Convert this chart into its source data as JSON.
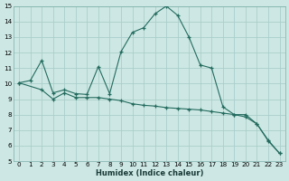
{
  "xlabel": "Humidex (Indice chaleur)",
  "bg_color": "#cde8e4",
  "grid_color": "#aaceca",
  "line_color": "#236b5e",
  "x_upper": [
    0,
    1,
    2,
    3,
    4,
    5,
    6,
    7,
    8,
    9,
    10,
    11,
    12,
    13,
    14,
    15,
    16,
    17,
    18,
    19,
    20,
    21,
    22,
    23
  ],
  "y_upper": [
    10.05,
    10.2,
    11.5,
    9.4,
    9.6,
    9.35,
    9.3,
    11.1,
    9.35,
    12.05,
    13.3,
    13.6,
    14.5,
    15.0,
    14.4,
    13.0,
    11.2,
    11.0,
    8.5,
    8.0,
    8.0,
    7.4,
    6.3,
    5.5
  ],
  "x_lower": [
    0,
    2,
    3,
    4,
    5,
    6,
    7,
    8,
    9,
    10,
    11,
    12,
    13,
    14,
    15,
    16,
    17,
    18,
    19,
    20,
    21,
    22,
    23
  ],
  "y_lower": [
    10.05,
    9.6,
    9.0,
    9.4,
    9.1,
    9.1,
    9.1,
    9.0,
    8.9,
    8.7,
    8.6,
    8.55,
    8.45,
    8.4,
    8.35,
    8.3,
    8.2,
    8.1,
    8.0,
    7.85,
    7.4,
    6.35,
    5.5
  ],
  "ylim": [
    5,
    15
  ],
  "xlim": [
    -0.5,
    23.5
  ],
  "yticks": [
    5,
    6,
    7,
    8,
    9,
    10,
    11,
    12,
    13,
    14,
    15
  ],
  "xticks": [
    0,
    1,
    2,
    3,
    4,
    5,
    6,
    7,
    8,
    9,
    10,
    11,
    12,
    13,
    14,
    15,
    16,
    17,
    18,
    19,
    20,
    21,
    22,
    23
  ],
  "xlabel_fontsize": 6.0,
  "tick_fontsize": 5.2
}
